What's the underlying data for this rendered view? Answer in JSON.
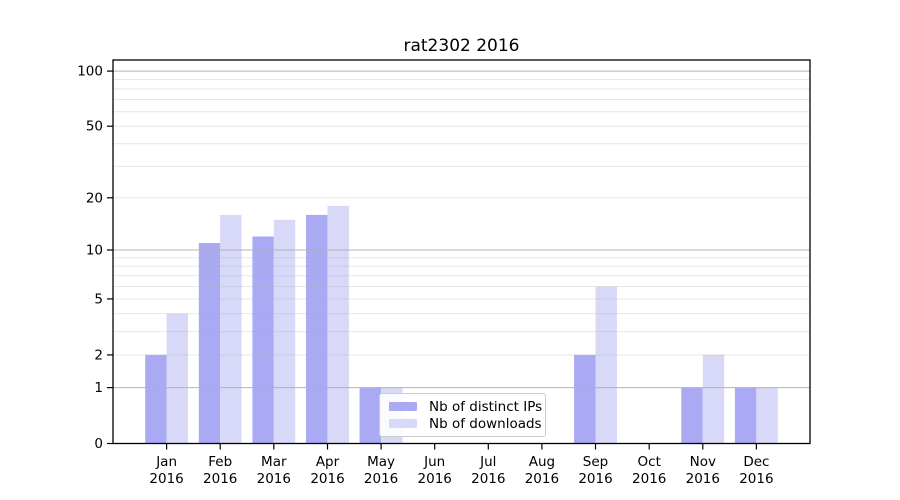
{
  "chart_data": {
    "type": "bar",
    "title": "rat2302 2016",
    "categories": [
      "Jan",
      "Feb",
      "Mar",
      "Apr",
      "May",
      "Jun",
      "Jul",
      "Aug",
      "Sep",
      "Oct",
      "Nov",
      "Dec"
    ],
    "year_label": "2016",
    "series": [
      {
        "name": "Nb of distinct IPs",
        "color": "#a9a9f4",
        "values": [
          2,
          11,
          12,
          16,
          1,
          0,
          0,
          0,
          2,
          0,
          1,
          1
        ]
      },
      {
        "name": "Nb of downloads",
        "color": "#d8d8f9",
        "values": [
          4,
          16,
          15,
          18,
          1,
          0,
          0,
          0,
          6,
          0,
          2,
          1
        ]
      }
    ],
    "yscale": "log1p",
    "ylim": [
      0,
      115
    ],
    "ytick_values": [
      0,
      1,
      2,
      5,
      10,
      20,
      50,
      100
    ],
    "ytick_labels": [
      "0",
      "1",
      "2",
      "5",
      "10",
      "20",
      "50",
      "100"
    ],
    "major_grid_values": [
      1,
      10,
      100
    ],
    "minor_grid_values": [
      2,
      3,
      4,
      5,
      6,
      7,
      8,
      9,
      20,
      30,
      40,
      50,
      60,
      70,
      80,
      90
    ],
    "grid": "on",
    "legend_position": "lower center",
    "colors": {
      "grid": "#b0b0b0",
      "axis": "#000000",
      "background": "#ffffff",
      "legend_border": "#cccccc",
      "text": "#000000"
    }
  }
}
